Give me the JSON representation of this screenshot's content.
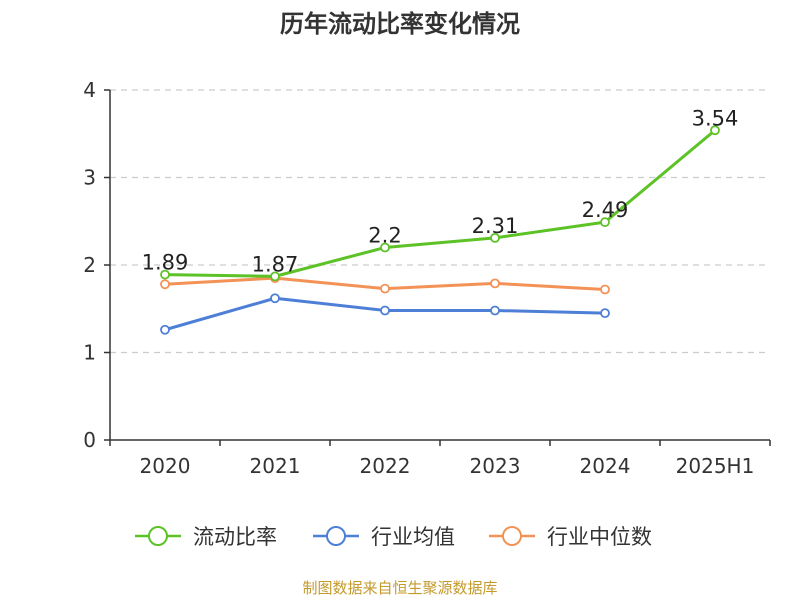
{
  "chart_data": {
    "type": "line",
    "title": "历年流动比率变化情况",
    "categories": [
      "2020",
      "2021",
      "2022",
      "2023",
      "2024",
      "2025H1"
    ],
    "ylim": [
      0,
      4
    ],
    "yticks": [
      "0",
      "1",
      "2",
      "3",
      "4"
    ],
    "grid": "horizontal dashed",
    "legend_position": "bottom",
    "series": [
      {
        "name": "流动比率",
        "color": "#5cc226",
        "values": [
          1.89,
          1.87,
          2.2,
          2.31,
          2.49,
          3.54
        ],
        "labels": [
          "1.89",
          "1.87",
          "2.2",
          "2.31",
          "2.49",
          "3.54"
        ]
      },
      {
        "name": "行业均值",
        "color": "#4e7fd6",
        "values": [
          1.26,
          1.62,
          1.48,
          1.48,
          1.45,
          null
        ]
      },
      {
        "name": "行业中位数",
        "color": "#f39256",
        "values": [
          1.78,
          1.85,
          1.73,
          1.79,
          1.72,
          null
        ]
      }
    ]
  },
  "footer": {
    "source": "制图数据来自恒生聚源数据库",
    "source_color": "#c49a2c"
  }
}
